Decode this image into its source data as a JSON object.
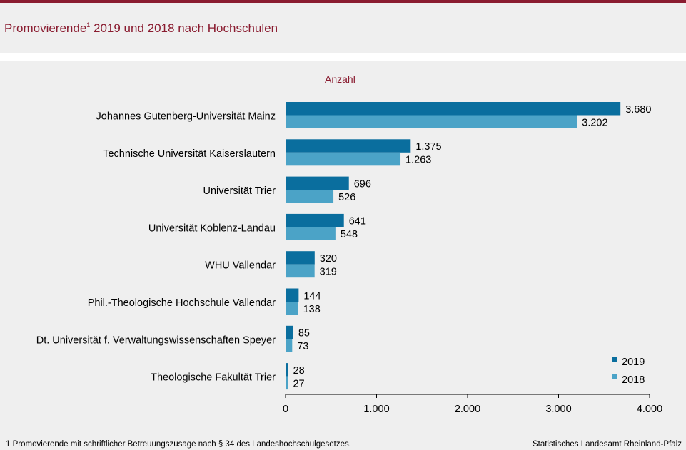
{
  "header": {
    "title_main": "Promovierende",
    "title_sup": "1",
    "title_rest": " 2019 und 2018 nach Hochschulen"
  },
  "chart_data": {
    "type": "bar",
    "orientation": "horizontal",
    "unit_label": "Anzahl",
    "categories": [
      "Johannes Gutenberg-Universität Mainz",
      "Technische Universität Kaiserslautern",
      "Universität Trier",
      "Universität Koblenz-Landau",
      "WHU Vallendar",
      "Phil.-Theologische Hochschule Vallendar",
      "Dt. Universität f. Verwaltungswissenschaften Speyer",
      "Theologische Fakultät Trier"
    ],
    "series": [
      {
        "name": "2019",
        "color": "#0a6e9e",
        "values": [
          3680,
          1375,
          696,
          641,
          320,
          144,
          85,
          28
        ],
        "labels": [
          "3.680",
          "1.375",
          "696",
          "641",
          "320",
          "144",
          "85",
          "28"
        ]
      },
      {
        "name": "2018",
        "color": "#4ba3c7",
        "values": [
          3202,
          1263,
          526,
          548,
          319,
          138,
          73,
          27
        ],
        "labels": [
          "3.202",
          "1.263",
          "526",
          "548",
          "319",
          "138",
          "73",
          "27"
        ]
      }
    ],
    "xlim": [
      0,
      4000
    ],
    "xticks": [
      0,
      1000,
      2000,
      3000,
      4000
    ],
    "xtick_labels": [
      "0",
      "1.000",
      "2.000",
      "3.000",
      "4.000"
    ],
    "grid": false,
    "legend_position": "bottom-right"
  },
  "footer": {
    "footnote": "1 Promovierende  mit schriftlicher Betreuungszusage  nach § 34 des Landeshochschulgesetzes.",
    "source": "Statistisches Landesamt Rheinland-Pfalz"
  }
}
